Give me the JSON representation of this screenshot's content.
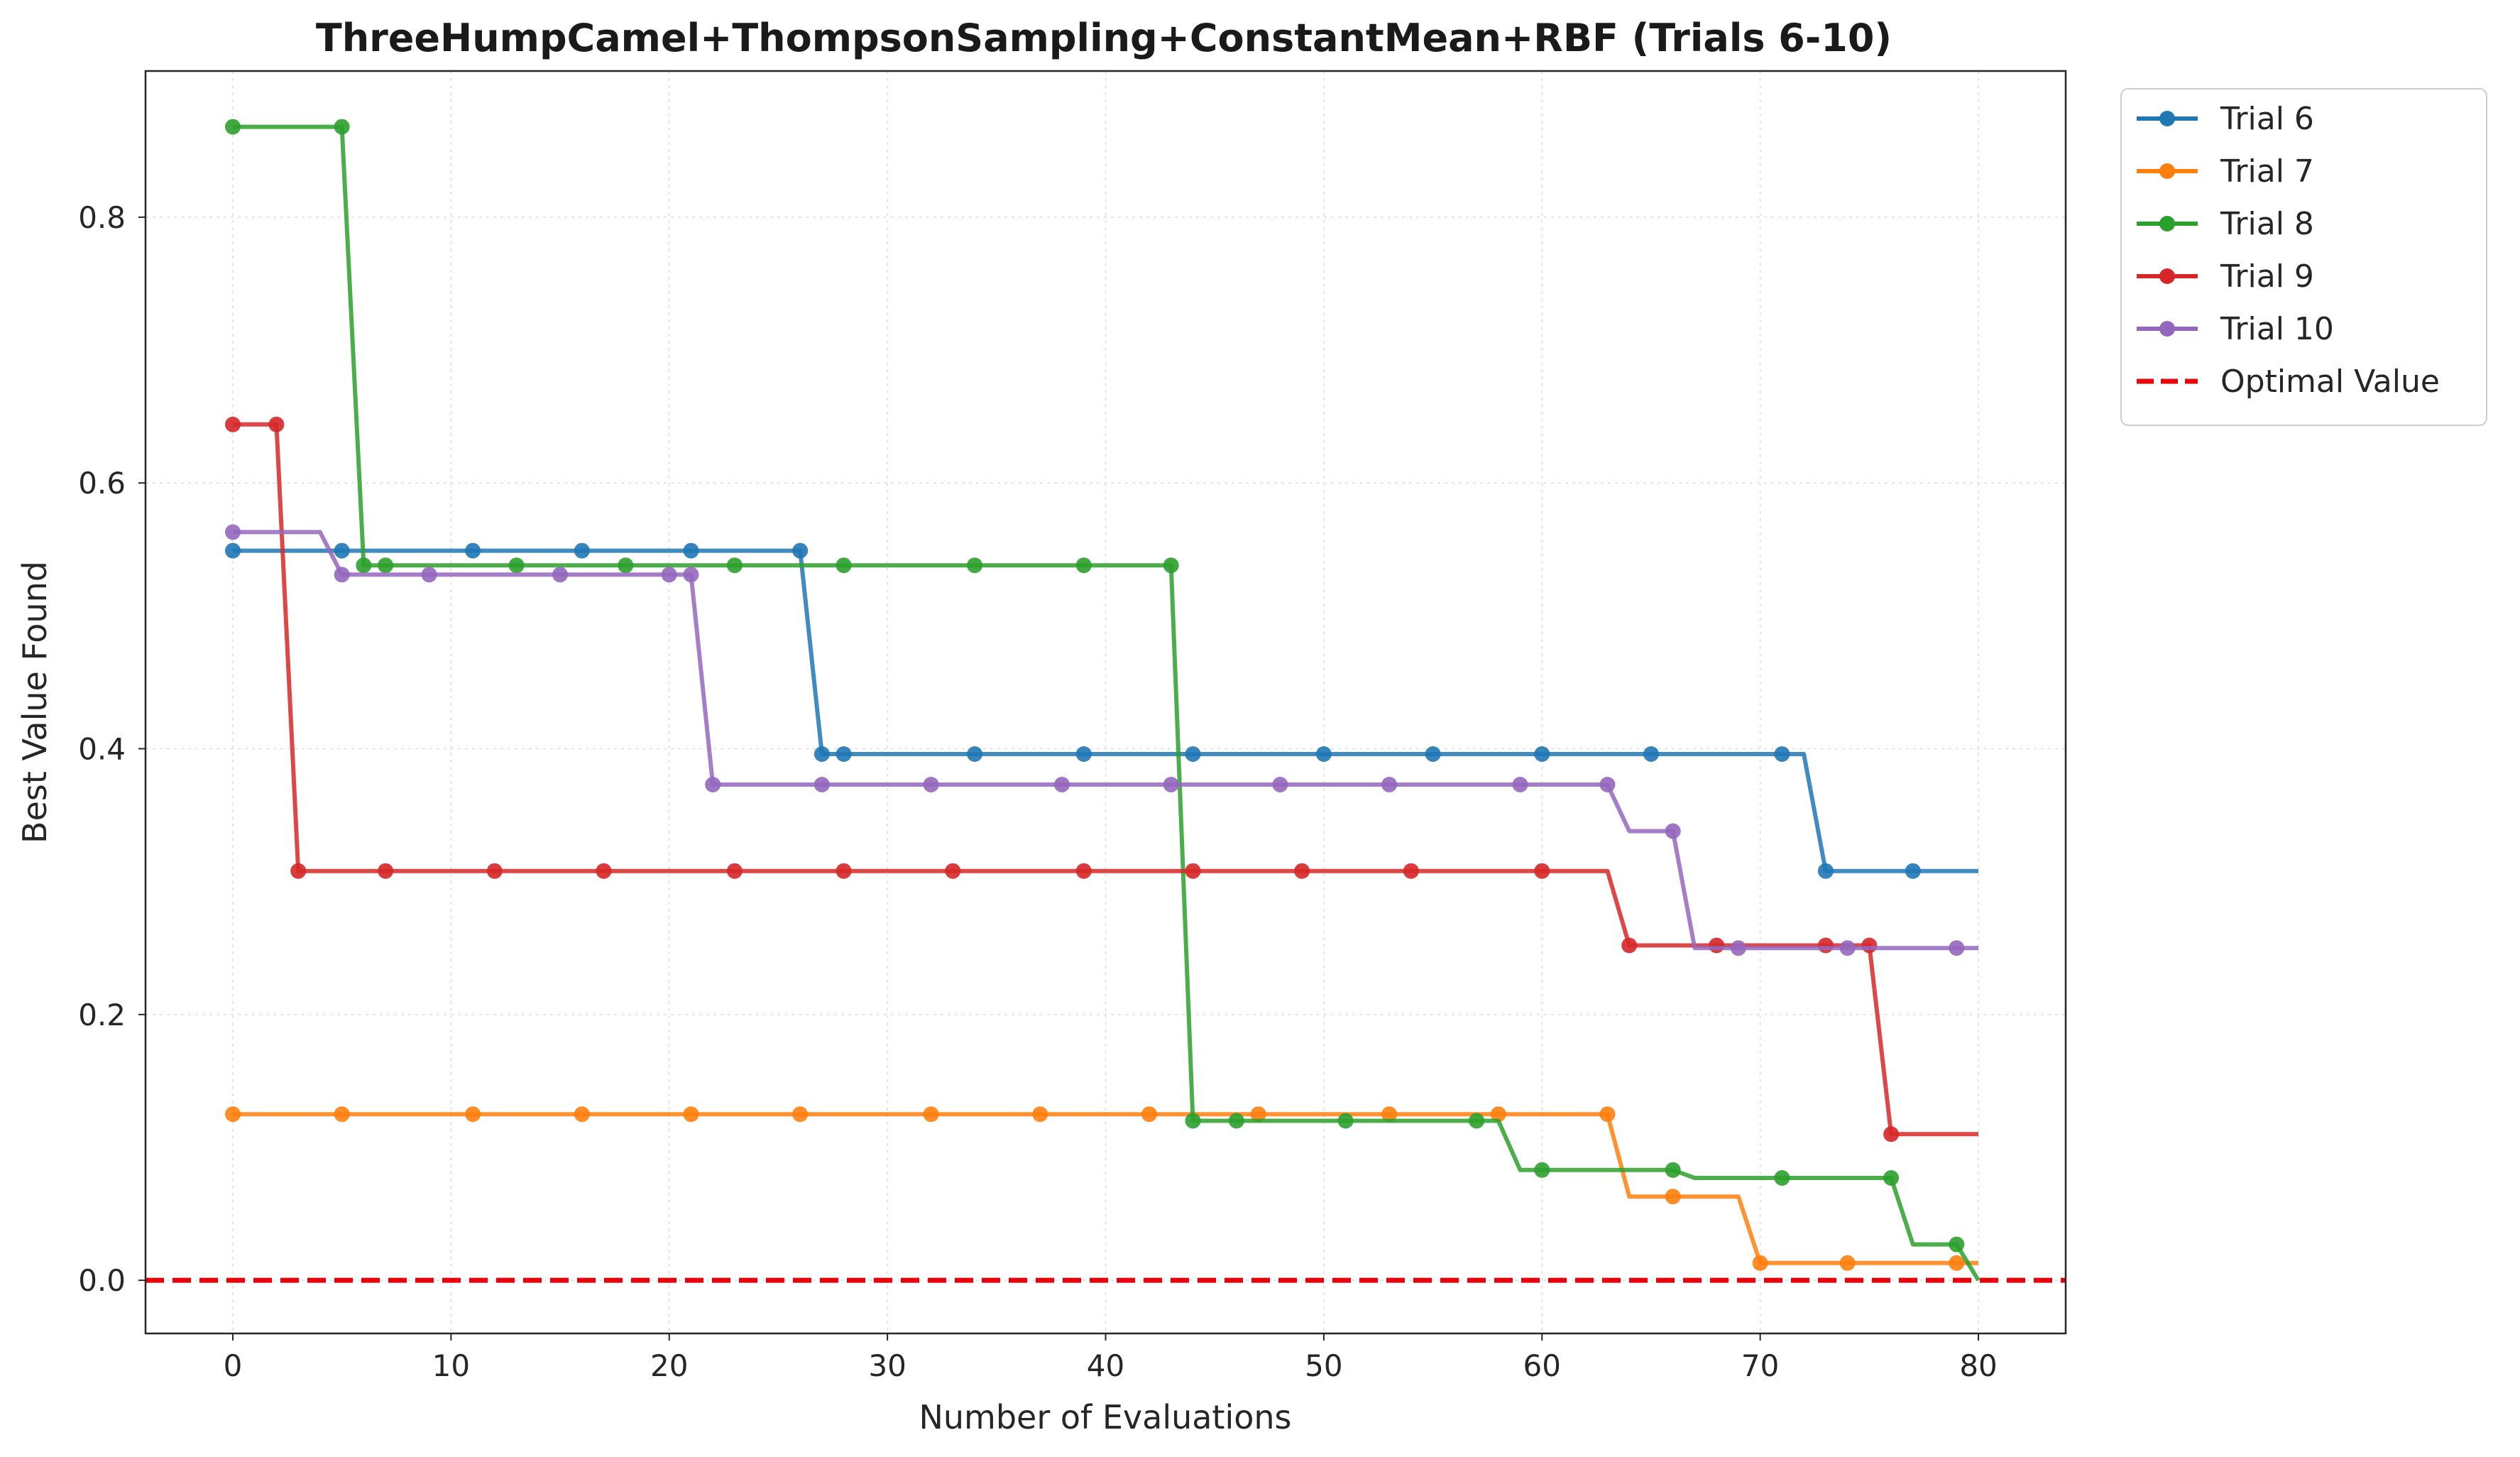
{
  "chart_data": {
    "type": "line",
    "title": "ThreeHumpCamel+ThompsonSampling+ConstantMean+RBF (Trials 6-10)",
    "xlabel": "Number of Evaluations",
    "ylabel": "Best Value Found",
    "xlim": [
      -4,
      84
    ],
    "ylim": [
      -0.04,
      0.91
    ],
    "xticks": [
      0,
      10,
      20,
      30,
      40,
      50,
      60,
      70,
      80
    ],
    "yticks": [
      0.0,
      0.2,
      0.4,
      0.6,
      0.8
    ],
    "grid": true,
    "legend_position": "outside-top-right",
    "optimal_value": {
      "name": "Optimal Value",
      "y": 0.0,
      "color": "#e8000b"
    },
    "series": [
      {
        "name": "Trial 6",
        "color": "#1f77b4",
        "steps": [
          [
            0,
            0.549
          ],
          [
            26,
            0.549
          ],
          [
            27,
            0.396
          ],
          [
            72,
            0.396
          ],
          [
            73,
            0.308
          ],
          [
            80,
            0.308
          ]
        ],
        "markers": [
          0,
          5,
          11,
          16,
          21,
          26,
          27,
          28,
          34,
          39,
          44,
          50,
          55,
          60,
          65,
          71,
          73,
          77
        ]
      },
      {
        "name": "Trial 7",
        "color": "#ff7f0e",
        "steps": [
          [
            0,
            0.125
          ],
          [
            63,
            0.125
          ],
          [
            64,
            0.063
          ],
          [
            69,
            0.063
          ],
          [
            70,
            0.013
          ],
          [
            80,
            0.013
          ]
        ],
        "markers": [
          0,
          5,
          11,
          16,
          21,
          26,
          32,
          37,
          42,
          47,
          53,
          58,
          63,
          66,
          70,
          74,
          79
        ]
      },
      {
        "name": "Trial 8",
        "color": "#2ca02c",
        "steps": [
          [
            0,
            0.868
          ],
          [
            5,
            0.868
          ],
          [
            6,
            0.538
          ],
          [
            43,
            0.538
          ],
          [
            44,
            0.12
          ],
          [
            58,
            0.12
          ],
          [
            59,
            0.083
          ],
          [
            66,
            0.083
          ],
          [
            67,
            0.077
          ],
          [
            76,
            0.077
          ],
          [
            77,
            0.027
          ],
          [
            79,
            0.027
          ],
          [
            80,
            0.0
          ]
        ],
        "markers": [
          0,
          5,
          6,
          7,
          13,
          18,
          23,
          28,
          34,
          39,
          43,
          44,
          46,
          51,
          57,
          60,
          66,
          71,
          76,
          79
        ]
      },
      {
        "name": "Trial 9",
        "color": "#d62728",
        "steps": [
          [
            0,
            0.644
          ],
          [
            2,
            0.644
          ],
          [
            3,
            0.308
          ],
          [
            63,
            0.308
          ],
          [
            64,
            0.252
          ],
          [
            75,
            0.252
          ],
          [
            76,
            0.11
          ],
          [
            80,
            0.11
          ]
        ],
        "markers": [
          0,
          2,
          3,
          7,
          12,
          17,
          23,
          28,
          33,
          39,
          44,
          49,
          54,
          60,
          64,
          68,
          73,
          75,
          76
        ]
      },
      {
        "name": "Trial 10",
        "color": "#9467bd",
        "steps": [
          [
            0,
            0.563
          ],
          [
            4,
            0.563
          ],
          [
            5,
            0.531
          ],
          [
            21,
            0.531
          ],
          [
            22,
            0.373
          ],
          [
            63,
            0.373
          ],
          [
            64,
            0.338
          ],
          [
            66,
            0.338
          ],
          [
            67,
            0.25
          ],
          [
            80,
            0.25
          ]
        ],
        "markers": [
          0,
          5,
          9,
          15,
          20,
          21,
          22,
          27,
          32,
          38,
          43,
          48,
          53,
          59,
          63,
          66,
          69,
          74,
          79
        ]
      }
    ]
  }
}
